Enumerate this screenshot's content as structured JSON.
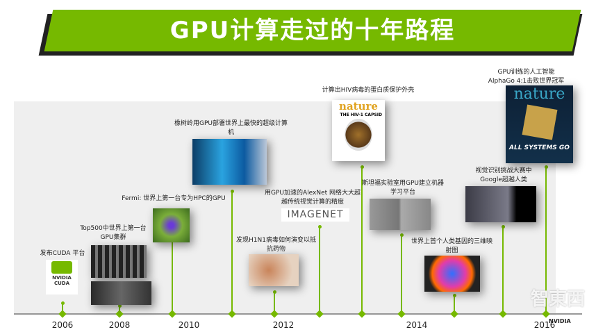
{
  "title": "GPU计算走过的十年路程",
  "years": [
    "2006",
    "2008",
    "2010",
    "2012",
    "2014",
    "2016"
  ],
  "events": [
    {
      "label": "发布CUDA 平台",
      "image_text": "NVIDIA CUDA"
    },
    {
      "label": "Top500中世界上第一台GPU集群"
    },
    {
      "label": "Fermi: 世界上第一台专为HPC的GPU"
    },
    {
      "label": "橡树岭用GPU部署世界上最快的超级计算机"
    },
    {
      "label": "发现H1N1病毒如何演变以抵抗药物"
    },
    {
      "label": "用GPU加速的AlexNet 网络大大超越传统视觉计算的精度",
      "image_text": "IMAGENET"
    },
    {
      "label": "计算出HIV病毒的蛋白质保护外壳",
      "image_text": "nature",
      "image_subtext": "THE HIV-1 CAPSID"
    },
    {
      "label": "斯坦福实验室用GPU建立机器学习平台"
    },
    {
      "label": "世界上首个人类基因的三维映射图"
    },
    {
      "label": "视觉识别挑战大赛中Google超越人类"
    },
    {
      "label": "GPU训练的人工智能AlphaGo 4:1击败世界冠军",
      "image_text": "nature",
      "image_subtext": "ALL SYSTEMS GO"
    }
  ],
  "watermark": "智東西",
  "logo": "NVIDIA",
  "colors": {
    "accent": "#76b900",
    "panel": "#efefef"
  }
}
